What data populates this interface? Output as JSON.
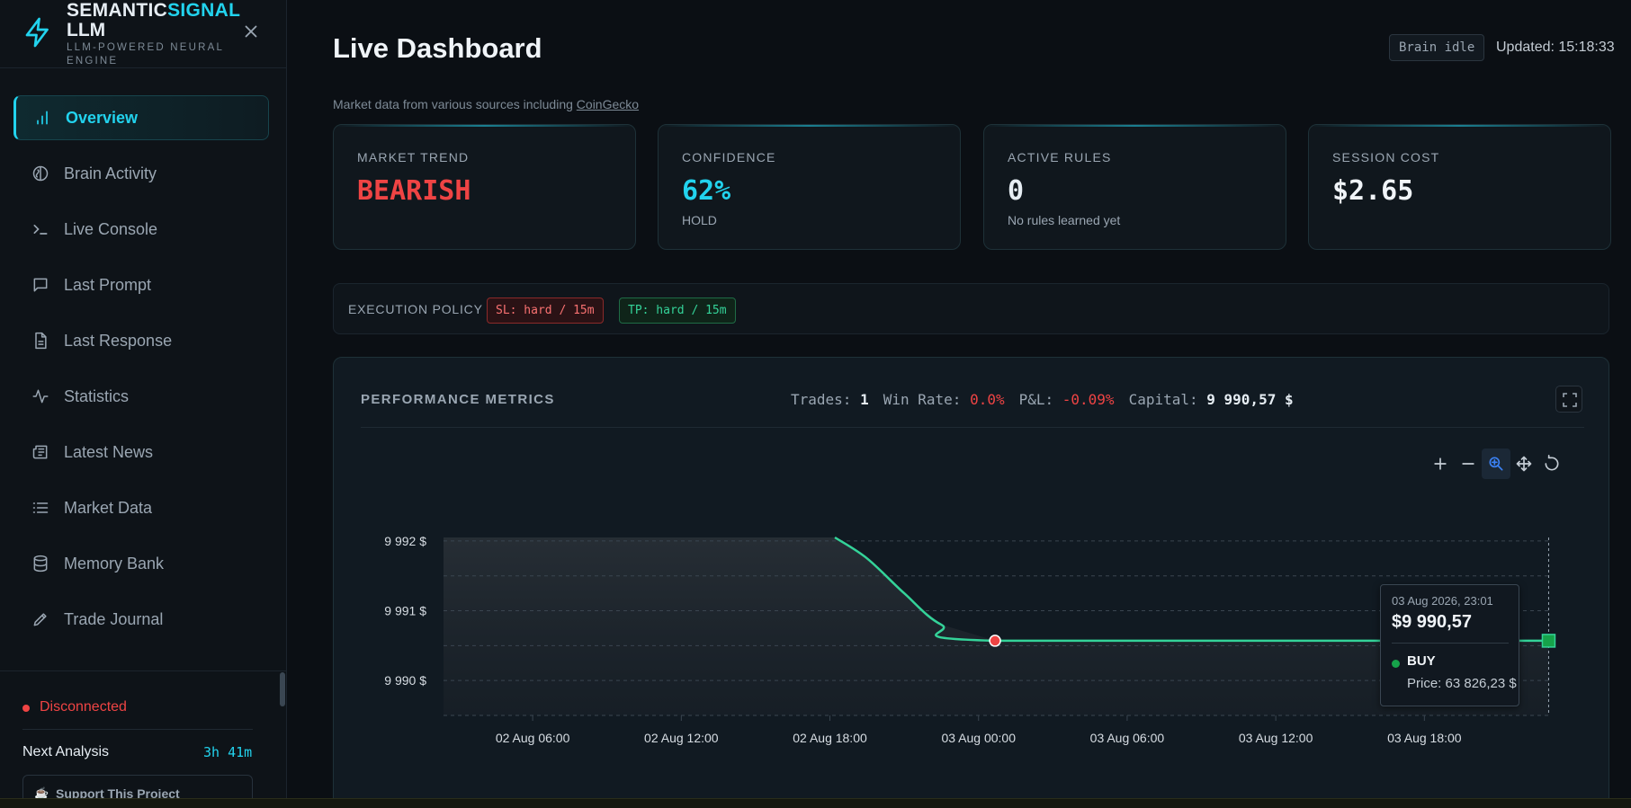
{
  "brand": {
    "name_part1": "SEMANTIC",
    "name_part2": "SIGNAL",
    "name_line2": "LLM",
    "tagline": "LLM-POWERED NEURAL ENGINE"
  },
  "sidebar": {
    "items": [
      {
        "label": "Overview",
        "icon": "bar-chart-icon",
        "active": true
      },
      {
        "label": "Brain Activity",
        "icon": "brain-icon"
      },
      {
        "label": "Live Console",
        "icon": "terminal-icon"
      },
      {
        "label": "Last Prompt",
        "icon": "message-icon"
      },
      {
        "label": "Last Response",
        "icon": "document-icon"
      },
      {
        "label": "Statistics",
        "icon": "activity-icon"
      },
      {
        "label": "Latest News",
        "icon": "newspaper-icon"
      },
      {
        "label": "Market Data",
        "icon": "list-icon"
      },
      {
        "label": "Memory Bank",
        "icon": "database-icon"
      },
      {
        "label": "Trade Journal",
        "icon": "pen-icon"
      }
    ],
    "status": "Disconnected",
    "next_analysis_label": "Next Analysis",
    "next_analysis_value": "3h 41m",
    "support_label": "Support This Project"
  },
  "header": {
    "title": "Live Dashboard",
    "brain_status": "Brain idle",
    "updated": "Updated: 15:18:33",
    "source_prefix": "Market data from various sources including",
    "source_link": "CoinGecko"
  },
  "cards": [
    {
      "label": "MARKET TREND",
      "value": "BEARISH",
      "sub": "",
      "color": "#ef4444"
    },
    {
      "label": "CONFIDENCE",
      "value": "62%",
      "sub": "HOLD",
      "color": "#22d3ee"
    },
    {
      "label": "ACTIVE RULES",
      "value": "0",
      "sub": "No rules learned yet",
      "color": "#e6edf3"
    },
    {
      "label": "SESSION COST",
      "value": "$2.65",
      "sub": "",
      "color": "#f0f4f8"
    }
  ],
  "policy": {
    "label": "EXECUTION POLICY",
    "sl": "SL: hard / 15m",
    "tp": "TP: hard / 15m"
  },
  "performance": {
    "title": "PERFORMANCE METRICS",
    "trades_label": "Trades:",
    "trades_value": "1",
    "winrate_label": "Win Rate:",
    "winrate_value": "0.0%",
    "pnl_label": "P&L:",
    "pnl_value": "-0.09%",
    "capital_label": "Capital:",
    "capital_value": "9 990,57 $"
  },
  "chart_data": {
    "type": "line",
    "title": "",
    "xlabel": "",
    "ylabel": "",
    "x_ticks": [
      "02 Aug 06:00",
      "02 Aug 12:00",
      "02 Aug 18:00",
      "03 Aug 00:00",
      "03 Aug 06:00",
      "03 Aug 12:00",
      "03 Aug 18:00"
    ],
    "y_ticks": [
      "9 990 $",
      "9 991 $",
      "9 992 $"
    ],
    "ylim": [
      9989.5,
      9992.05
    ],
    "xlim": [
      "2026-08-02 02:24",
      "2026-08-03 23:00"
    ],
    "series": [
      {
        "color": "#34d399",
        "points": [
          {
            "x": "2026-08-02 18:12",
            "y": 9992.05
          },
          {
            "x": "2026-08-02 19:30",
            "y": 9991.75
          },
          {
            "x": "2026-08-02 21:00",
            "y": 9991.25
          },
          {
            "x": "2026-08-02 22:30",
            "y": 9990.8
          },
          {
            "x": "2026-08-03 00:40",
            "y": 9990.57
          },
          {
            "x": "2026-08-03 23:01",
            "y": 9990.57
          }
        ]
      }
    ],
    "markers": [
      {
        "x": "2026-08-03 00:40",
        "y": 9990.57,
        "kind": "sell",
        "color": "#ef4444"
      },
      {
        "x": "2026-08-03 23:01",
        "y": 9990.57,
        "kind": "buy",
        "color": "#16a34a"
      }
    ],
    "tooltip": {
      "date": "03 Aug 2026, 23:01",
      "value": "$9 990,57",
      "side": "BUY",
      "price": "Price: 63 826,23 $"
    }
  }
}
